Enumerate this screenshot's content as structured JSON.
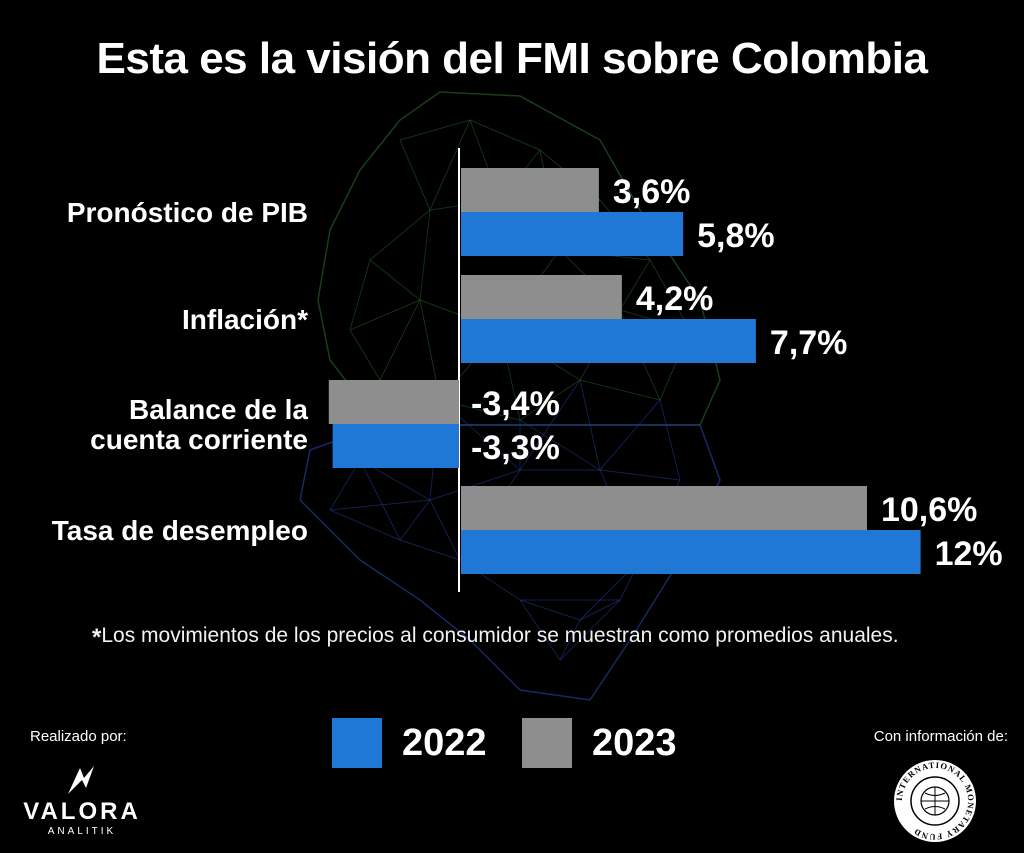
{
  "title": "Esta es la visión del FMI sobre Colombia",
  "footnote": {
    "marker": "*",
    "text": "Los movimientos de los precios al consumidor se muestran como promedios anuales."
  },
  "credits": {
    "made_by": "Realizado por:",
    "source_label": "Con información de:"
  },
  "logos": {
    "valora_name": "VALORA",
    "valora_sub": "ANALITIK",
    "imf_seal_text": "INTERNATIONAL MONETARY FUND"
  },
  "colors": {
    "2022": "#1f77d6",
    "2023": "#8e8e8e",
    "background": "#000000",
    "map_top": "#1f5a28",
    "map_bottom": "#1f3a8f"
  },
  "chart_data": {
    "type": "bar",
    "orientation": "horizontal",
    "categories": [
      "Pronóstico de PIB",
      "Inflación*",
      "Balance de la cuenta corriente",
      "Tasa de desempleo"
    ],
    "category_lines": [
      [
        "Pronóstico de PIB"
      ],
      [
        "Inflación*"
      ],
      [
        "Balance de la",
        "cuenta corriente"
      ],
      [
        "Tasa de desempleo"
      ]
    ],
    "series": [
      {
        "name": "2023",
        "values": [
          3.6,
          4.2,
          -3.4,
          10.6
        ],
        "labels": [
          "3,6%",
          "4,2%",
          "-3,4%",
          "10,6%"
        ]
      },
      {
        "name": "2022",
        "values": [
          5.8,
          7.7,
          -3.3,
          12
        ],
        "labels": [
          "5,8%",
          "7,7%",
          "-3,3%",
          "12%"
        ]
      }
    ],
    "legend": [
      "2022",
      "2023"
    ],
    "legend_position": "bottom",
    "grid": false
  }
}
